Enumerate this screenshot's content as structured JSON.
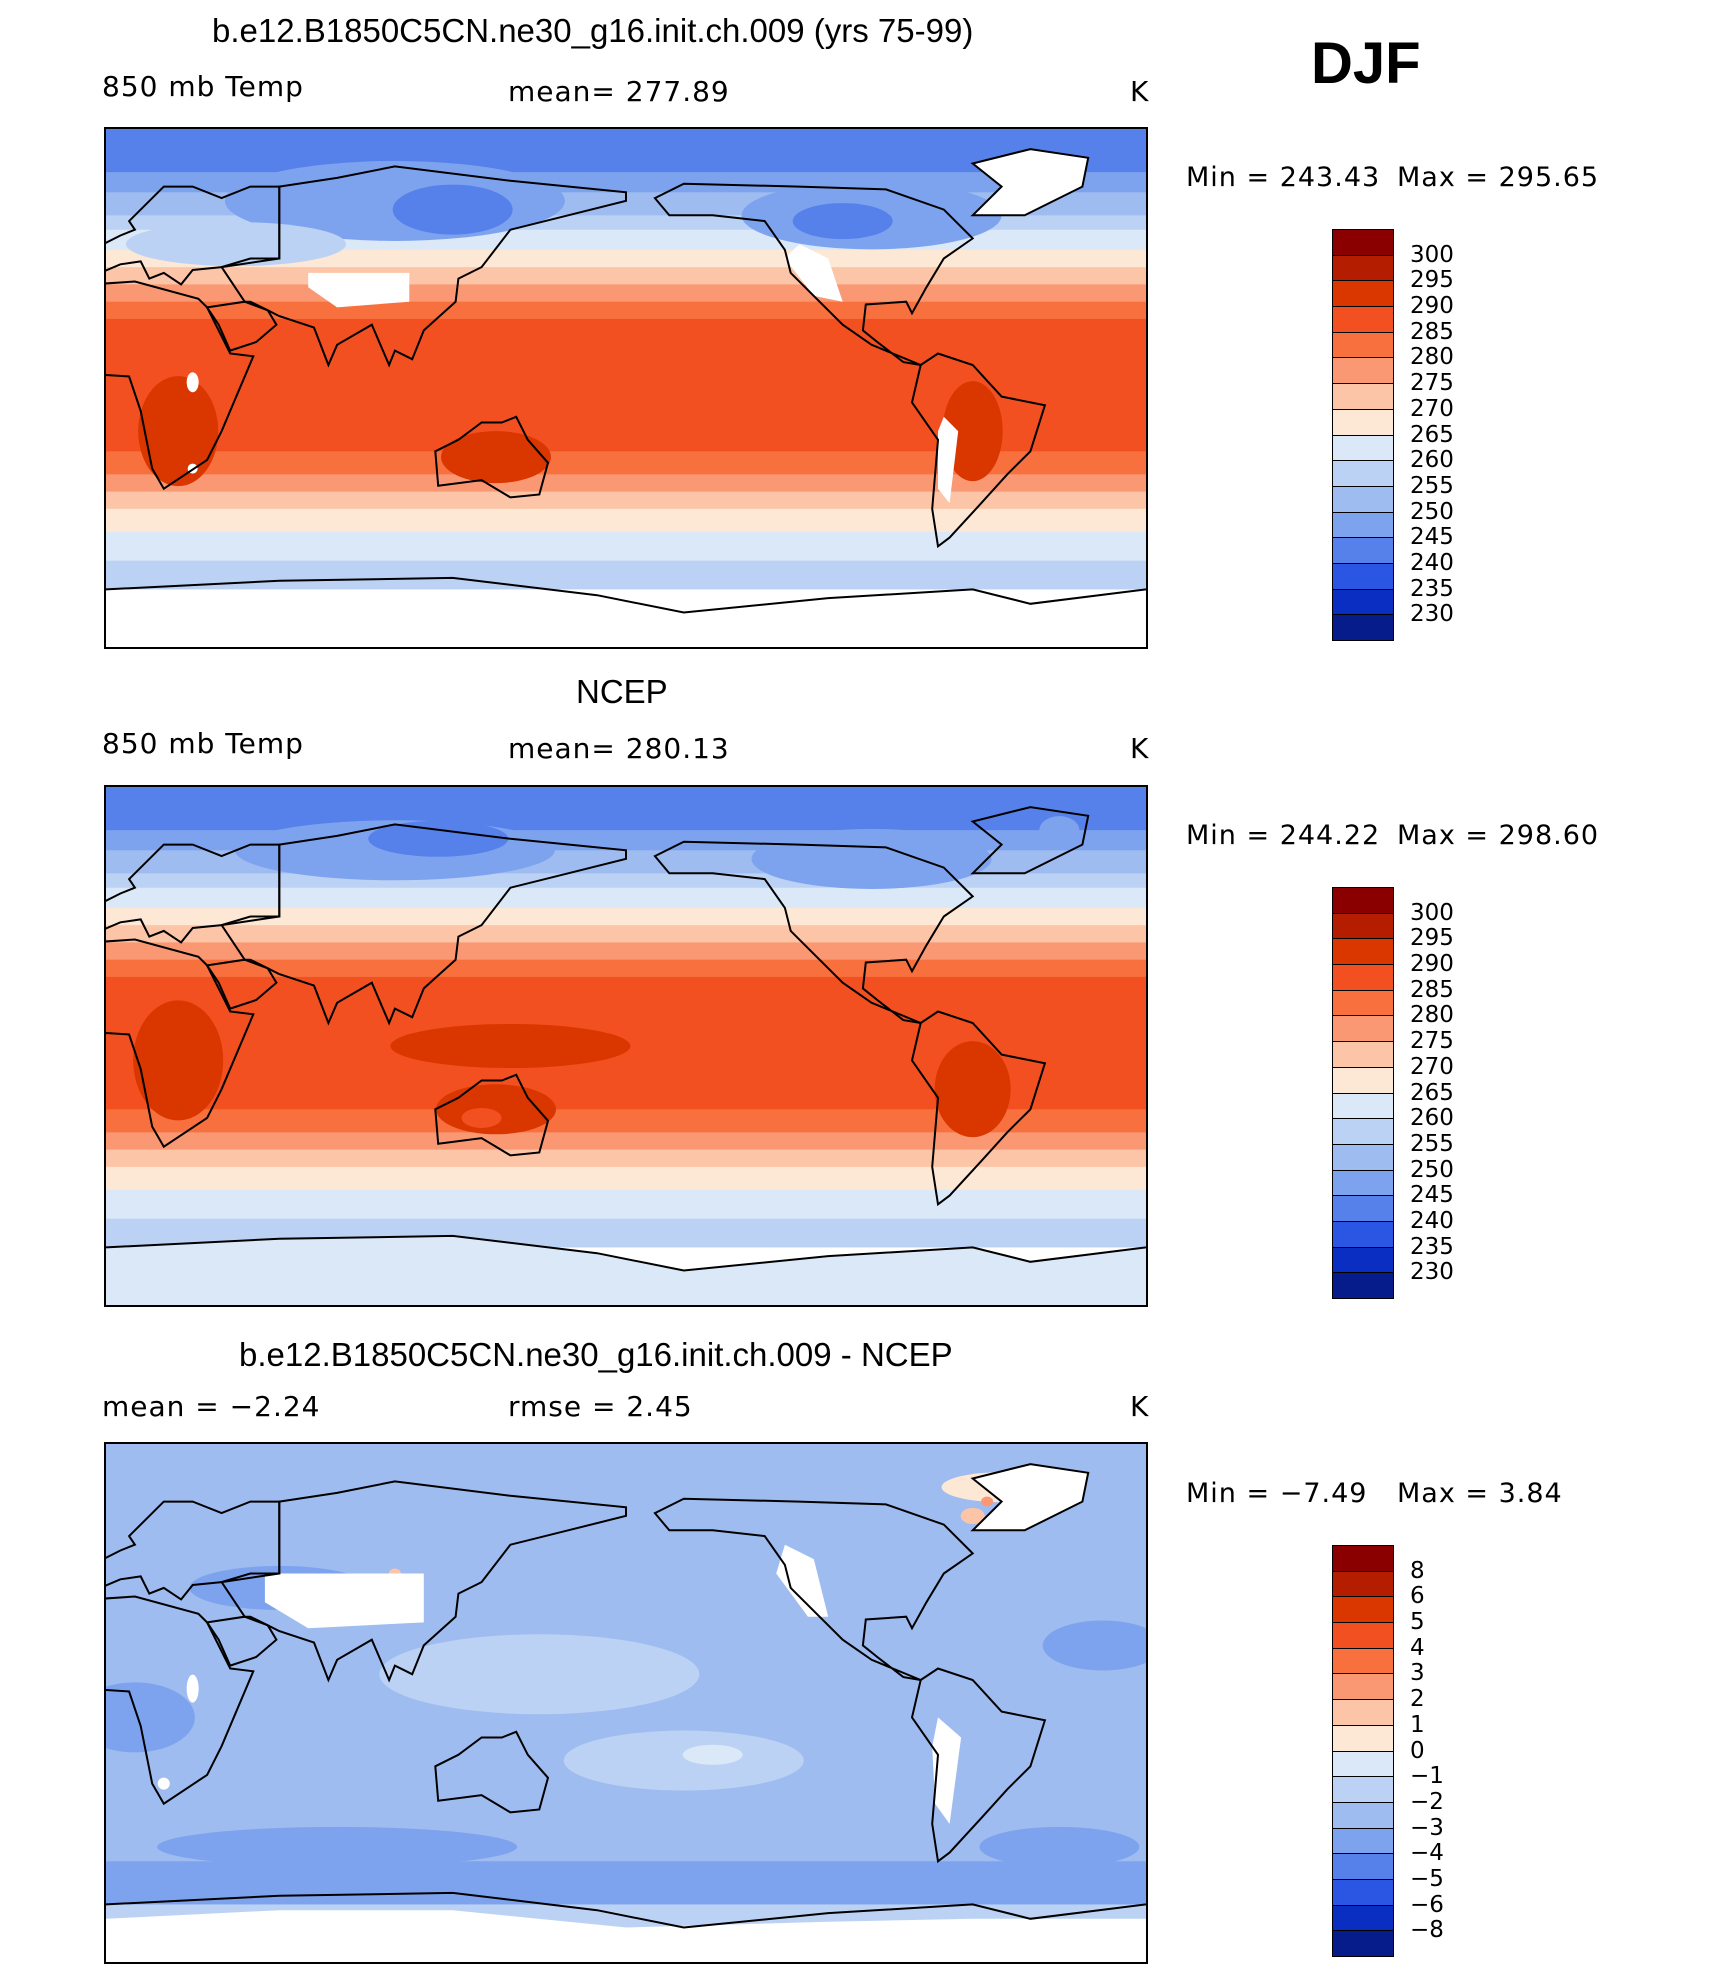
{
  "season": "DJF",
  "chart_data": [
    {
      "type": "heatmap",
      "title": "b.e12.B1850C5CN.ne30_g16.init.ch.009 (yrs 75-99)",
      "left_label": "850 mb Temp",
      "center_label": "mean=  277.89",
      "units": "K",
      "min_label": "Min  =  243.43",
      "max_label": "Max  =  295.65",
      "min": 243.43,
      "max": 295.65,
      "mean": 277.89,
      "colorbar_levels": [
        "300",
        "295",
        "290",
        "285",
        "280",
        "275",
        "270",
        "265",
        "260",
        "255",
        "250",
        "245",
        "240",
        "235",
        "230"
      ],
      "field": "850 mb temperature, model"
    },
    {
      "type": "heatmap",
      "title": "NCEP",
      "left_label": "850 mb Temp",
      "center_label": "mean=  280.13",
      "units": "K",
      "min_label": "Min  =  244.22",
      "max_label": "Max  =  298.60",
      "min": 244.22,
      "max": 298.6,
      "mean": 280.13,
      "colorbar_levels": [
        "300",
        "295",
        "290",
        "285",
        "280",
        "275",
        "270",
        "265",
        "260",
        "255",
        "250",
        "245",
        "240",
        "235",
        "230"
      ],
      "field": "850 mb temperature, NCEP reanalysis"
    },
    {
      "type": "heatmap",
      "title": "b.e12.B1850C5CN.ne30_g16.init.ch.009 - NCEP",
      "left_label": "mean =    −2.24",
      "center_label": "rmse =     2.45",
      "units": "K",
      "min_label": "Min  =    −7.49",
      "max_label": "Max  =     3.84",
      "min": -7.49,
      "max": 3.84,
      "mean": -2.24,
      "rmse": 2.45,
      "colorbar_levels": [
        "8",
        "6",
        "5",
        "4",
        "3",
        "2",
        "1",
        "0",
        "−1",
        "−2",
        "−3",
        "−4",
        "−5",
        "−6",
        "−8"
      ],
      "field": "difference model minus NCEP"
    }
  ],
  "colors": {
    "ramp": [
      "#8a0000",
      "#b51d00",
      "#d93600",
      "#f25020",
      "#f7703e",
      "#fa9873",
      "#fdc5a8",
      "#fde8d6",
      "#dbe8f8",
      "#bcd2f4",
      "#9fbcf0",
      "#7ea3ee",
      "#5781ea",
      "#2a56e3",
      "#0a2dc2",
      "#061c8a"
    ],
    "ocean_warm": "#f25020",
    "land_line": "#000000"
  }
}
